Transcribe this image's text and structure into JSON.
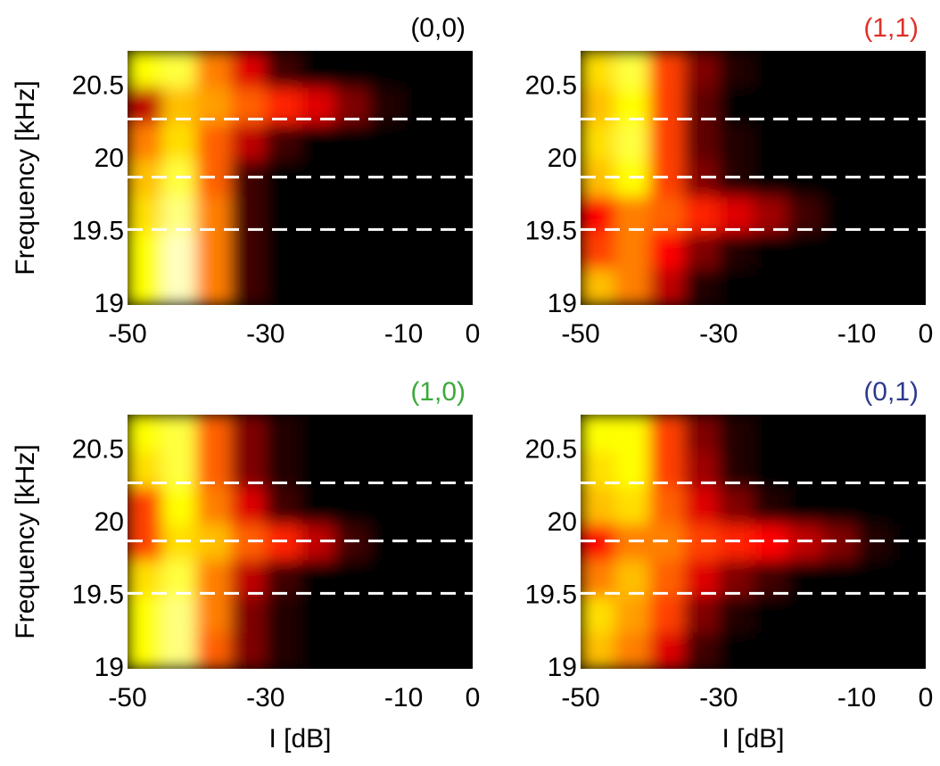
{
  "chart_data": [
    {
      "type": "heatmap",
      "title": "(0,0)",
      "title_color": "#000000",
      "ylabel": "Frequency [kHz]",
      "colormap": "hot",
      "xlim": [
        -50,
        0
      ],
      "xticks": [
        -50,
        -30,
        -10,
        0
      ],
      "ylim": [
        19,
        20.75
      ],
      "yticks": [
        19,
        19.5,
        20,
        20.5
      ],
      "xbins": [
        -50,
        -45,
        -40,
        -35,
        -30,
        -25,
        -20,
        -15,
        -10,
        -5,
        0
      ],
      "ybins": [
        19,
        19.25,
        19.5,
        19.75,
        20,
        20.25,
        20.5,
        20.75
      ],
      "z": [
        [
          0.8,
          0.95,
          0.6,
          0.1,
          0,
          0,
          0,
          0,
          0,
          0
        ],
        [
          0.8,
          0.95,
          0.6,
          0.1,
          0,
          0,
          0,
          0,
          0,
          0
        ],
        [
          0.75,
          0.9,
          0.6,
          0.1,
          0,
          0,
          0,
          0,
          0,
          0
        ],
        [
          0.7,
          0.85,
          0.55,
          0.1,
          0,
          0,
          0,
          0,
          0,
          0
        ],
        [
          0.6,
          0.75,
          0.55,
          0.3,
          0.1,
          0,
          0,
          0,
          0,
          0
        ],
        [
          0.3,
          0.7,
          0.65,
          0.55,
          0.45,
          0.35,
          0.2,
          0.05,
          0,
          0
        ],
        [
          0.8,
          0.85,
          0.6,
          0.35,
          0.1,
          0,
          0,
          0,
          0,
          0
        ]
      ],
      "hlines": [
        19.52,
        19.88,
        20.28
      ],
      "hline_color": "#ffffff"
    },
    {
      "type": "heatmap",
      "title": "(1,1)",
      "title_color": "#e0302a",
      "colormap": "hot",
      "xlim": [
        -50,
        0
      ],
      "xticks": [
        -50,
        -30,
        -10,
        0
      ],
      "ylim": [
        19,
        20.75
      ],
      "yticks": [
        19,
        19.5,
        20,
        20.5
      ],
      "xbins": [
        -50,
        -45,
        -40,
        -35,
        -30,
        -25,
        -20,
        -15,
        -10,
        -5,
        0
      ],
      "ybins": [
        19,
        19.25,
        19.5,
        19.75,
        20,
        20.25,
        20.5,
        20.75
      ],
      "z": [
        [
          0.7,
          0.6,
          0.3,
          0.05,
          0,
          0,
          0,
          0,
          0,
          0
        ],
        [
          0.5,
          0.6,
          0.4,
          0.2,
          0.05,
          0,
          0,
          0,
          0,
          0
        ],
        [
          0.4,
          0.6,
          0.55,
          0.45,
          0.35,
          0.25,
          0.1,
          0,
          0,
          0
        ],
        [
          0.7,
          0.8,
          0.5,
          0.2,
          0.05,
          0,
          0,
          0,
          0,
          0
        ],
        [
          0.75,
          0.85,
          0.5,
          0.15,
          0.05,
          0,
          0,
          0,
          0,
          0
        ],
        [
          0.7,
          0.8,
          0.5,
          0.15,
          0,
          0,
          0,
          0,
          0,
          0
        ],
        [
          0.75,
          0.85,
          0.5,
          0.2,
          0.05,
          0,
          0,
          0,
          0,
          0
        ]
      ],
      "hlines": [
        19.52,
        19.88,
        20.28
      ],
      "hline_color": "#ffffff"
    },
    {
      "type": "heatmap",
      "title": "(1,0)",
      "title_color": "#3aaa3a",
      "ylabel": "Frequency [kHz]",
      "xlabel": "I [dB]",
      "colormap": "hot",
      "xlim": [
        -50,
        0
      ],
      "xticks": [
        -50,
        -30,
        -10,
        0
      ],
      "ylim": [
        19,
        20.75
      ],
      "yticks": [
        19,
        19.5,
        20,
        20.5
      ],
      "xbins": [
        -50,
        -45,
        -40,
        -35,
        -30,
        -25,
        -20,
        -15,
        -10,
        -5,
        0
      ],
      "ybins": [
        19,
        19.25,
        19.5,
        19.75,
        20,
        20.25,
        20.5,
        20.75
      ],
      "z": [
        [
          0.8,
          0.9,
          0.55,
          0.2,
          0.05,
          0,
          0,
          0,
          0,
          0
        ],
        [
          0.8,
          0.9,
          0.6,
          0.2,
          0.05,
          0,
          0,
          0,
          0,
          0
        ],
        [
          0.75,
          0.85,
          0.6,
          0.3,
          0.1,
          0,
          0,
          0,
          0,
          0
        ],
        [
          0.5,
          0.75,
          0.7,
          0.55,
          0.45,
          0.3,
          0.1,
          0,
          0,
          0
        ],
        [
          0.5,
          0.8,
          0.6,
          0.35,
          0.1,
          0,
          0,
          0,
          0,
          0
        ],
        [
          0.75,
          0.85,
          0.55,
          0.2,
          0.05,
          0,
          0,
          0,
          0,
          0
        ],
        [
          0.8,
          0.85,
          0.55,
          0.2,
          0.05,
          0,
          0,
          0,
          0,
          0
        ]
      ],
      "hlines": [
        19.52,
        19.88,
        20.28
      ],
      "hline_color": "#ffffff"
    },
    {
      "type": "heatmap",
      "title": "(0,1)",
      "title_color": "#2e3a8c",
      "xlabel": "I [dB]",
      "colormap": "hot",
      "xlim": [
        -50,
        0
      ],
      "xticks": [
        -50,
        -30,
        -10,
        0
      ],
      "ylim": [
        19,
        20.75
      ],
      "yticks": [
        19,
        19.5,
        20,
        20.5
      ],
      "xbins": [
        -50,
        -45,
        -40,
        -35,
        -30,
        -25,
        -20,
        -15,
        -10,
        -5,
        0
      ],
      "ybins": [
        19,
        19.25,
        19.5,
        19.75,
        20,
        20.25,
        20.5,
        20.75
      ],
      "z": [
        [
          0.7,
          0.6,
          0.35,
          0.1,
          0,
          0,
          0,
          0,
          0,
          0
        ],
        [
          0.75,
          0.65,
          0.5,
          0.2,
          0.05,
          0,
          0,
          0,
          0,
          0
        ],
        [
          0.6,
          0.7,
          0.55,
          0.35,
          0.2,
          0.1,
          0,
          0,
          0,
          0
        ],
        [
          0.4,
          0.6,
          0.6,
          0.5,
          0.45,
          0.4,
          0.3,
          0.2,
          0.05,
          0
        ],
        [
          0.7,
          0.75,
          0.55,
          0.35,
          0.2,
          0.05,
          0,
          0,
          0,
          0
        ],
        [
          0.75,
          0.8,
          0.5,
          0.25,
          0.05,
          0,
          0,
          0,
          0,
          0
        ],
        [
          0.8,
          0.8,
          0.5,
          0.2,
          0.05,
          0,
          0,
          0,
          0,
          0
        ]
      ],
      "hlines": [
        19.52,
        19.88,
        20.28
      ],
      "hline_color": "#ffffff"
    }
  ]
}
